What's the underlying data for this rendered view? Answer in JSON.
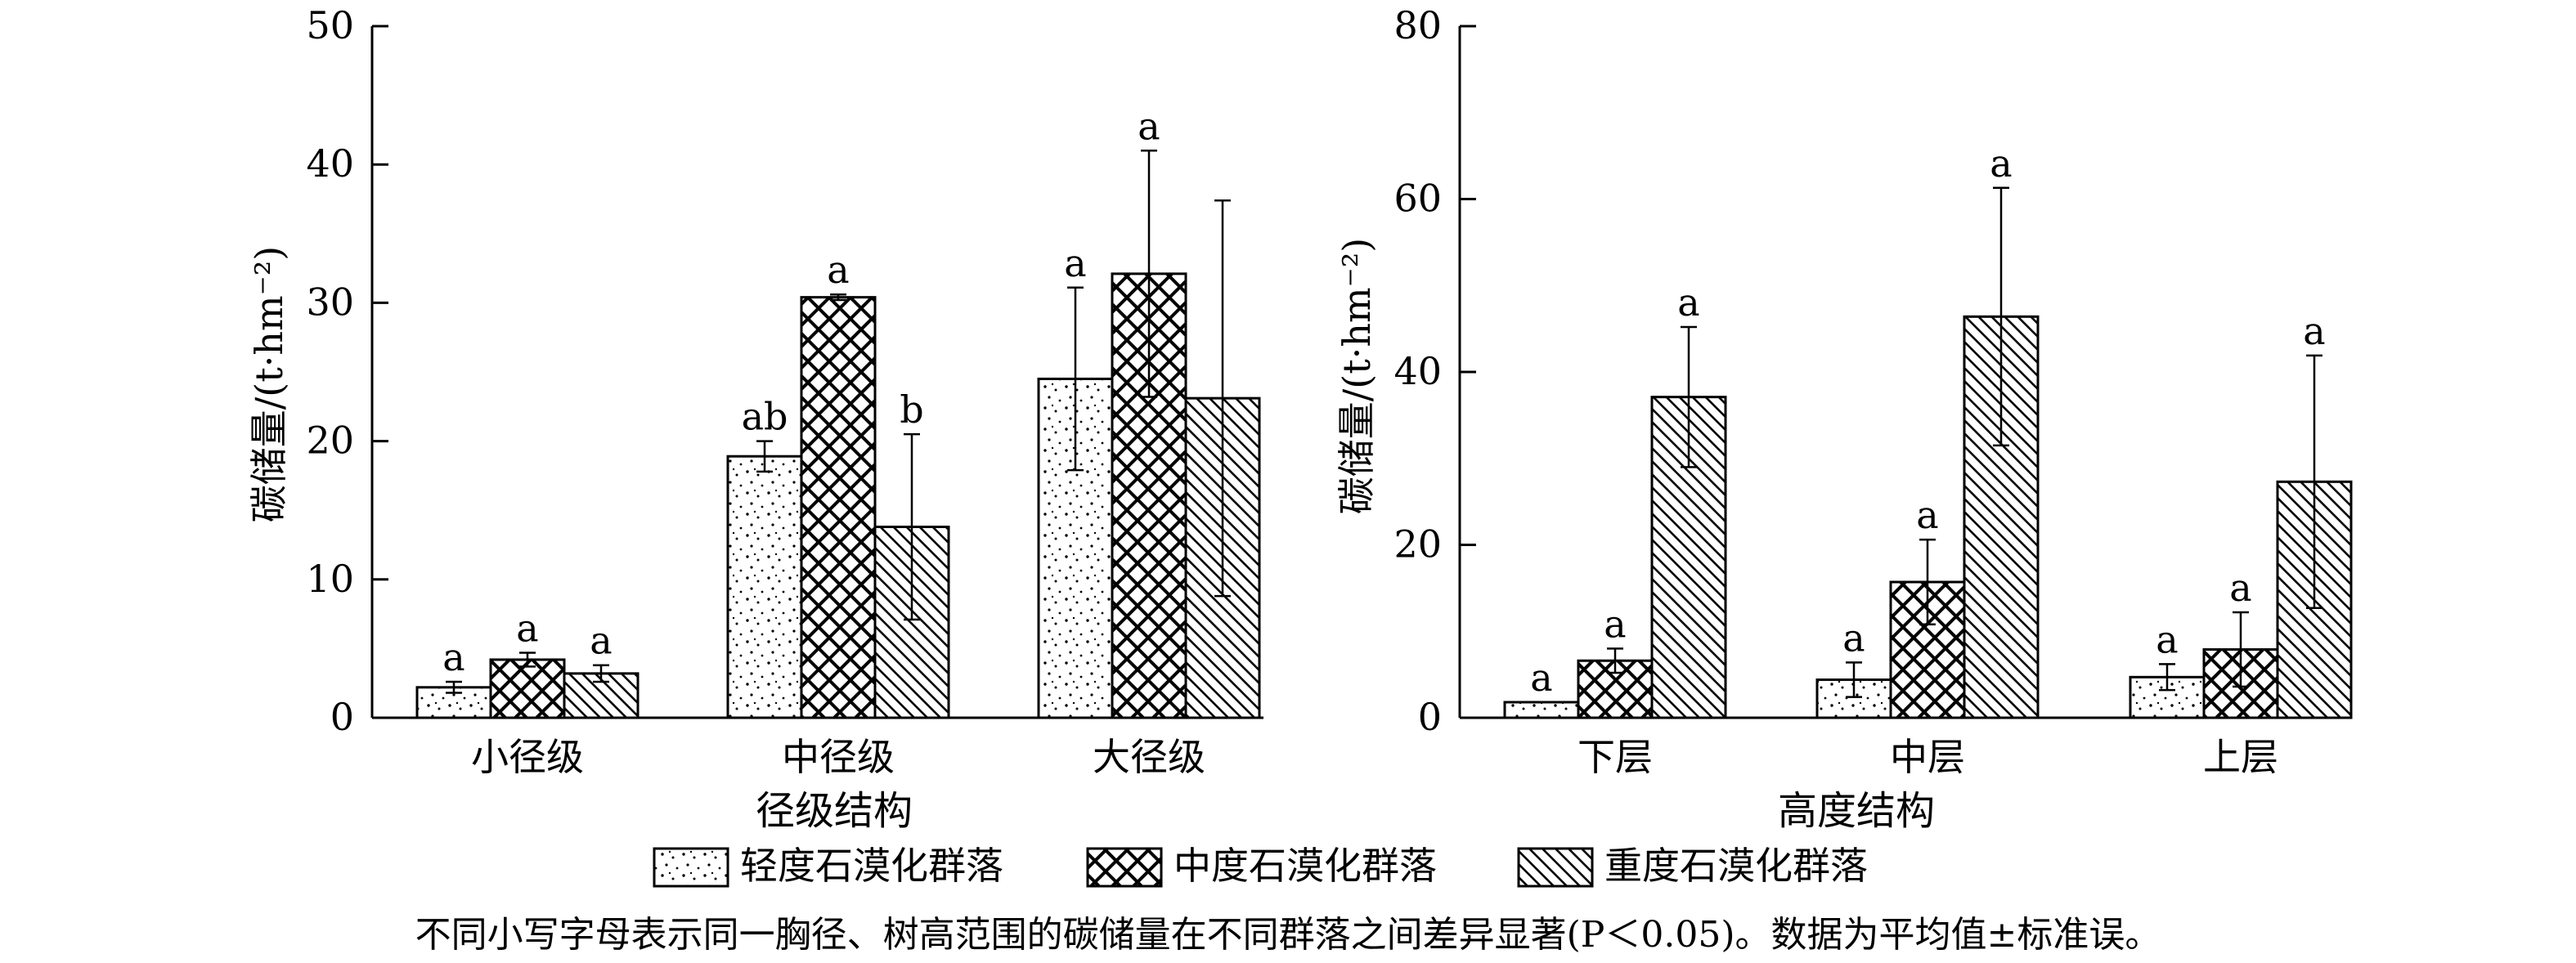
{
  "legend": {
    "items": [
      {
        "label": "轻度石漠化群落",
        "pattern": "dots"
      },
      {
        "label": "中度石漠化群落",
        "pattern": "crosshatch"
      },
      {
        "label": "重度石漠化群落",
        "pattern": "diagonal"
      }
    ]
  },
  "note": "不同小写字母表示同一胸径、树高范围的碳储量在不同群落之间差异显著(P＜0.05)。数据为平均值±标准误。",
  "chart_data": [
    {
      "type": "bar",
      "xlabel": "径级结构",
      "ylabel": "碳储量/(t·hm⁻²)",
      "ylim": [
        0,
        50
      ],
      "yticks": [
        0,
        10,
        20,
        30,
        40,
        50
      ],
      "categories": [
        "小径级",
        "中径级",
        "大径级"
      ],
      "series": [
        {
          "name": "轻度石漠化群落",
          "values": [
            2.2,
            18.9,
            24.5
          ],
          "errors": [
            0.4,
            1.1,
            6.6
          ],
          "letters": [
            "a",
            "ab",
            "a"
          ]
        },
        {
          "name": "中度石漠化群落",
          "values": [
            4.2,
            30.4,
            32.1
          ],
          "errors": [
            0.5,
            0.2,
            8.9
          ],
          "letters": [
            "a",
            "a",
            "a"
          ]
        },
        {
          "name": "重度石漠化群落",
          "values": [
            3.2,
            13.8,
            23.1
          ],
          "errors": [
            0.6,
            6.7,
            14.3
          ],
          "letters": [
            "a",
            "b",
            ""
          ]
        }
      ]
    },
    {
      "type": "bar",
      "xlabel": "高度结构",
      "ylabel": "碳储量/(t·hm⁻²)",
      "ylim": [
        0,
        80
      ],
      "yticks": [
        0,
        20,
        40,
        60,
        80
      ],
      "categories": [
        "下层",
        "中层",
        "上层"
      ],
      "series": [
        {
          "name": "轻度石漠化群落",
          "values": [
            1.8,
            4.4,
            4.7
          ],
          "errors": [
            0,
            2.0,
            1.5
          ],
          "letters": [
            "a",
            "a",
            "a"
          ]
        },
        {
          "name": "中度石漠化群落",
          "values": [
            6.6,
            15.7,
            7.9
          ],
          "errors": [
            1.4,
            4.9,
            4.3
          ],
          "letters": [
            "a",
            "a",
            "a"
          ]
        },
        {
          "name": "重度石漠化群落",
          "values": [
            37.1,
            46.4,
            27.3
          ],
          "errors": [
            8.1,
            14.9,
            14.6
          ],
          "letters": [
            "a",
            "a",
            "a"
          ]
        }
      ]
    }
  ]
}
